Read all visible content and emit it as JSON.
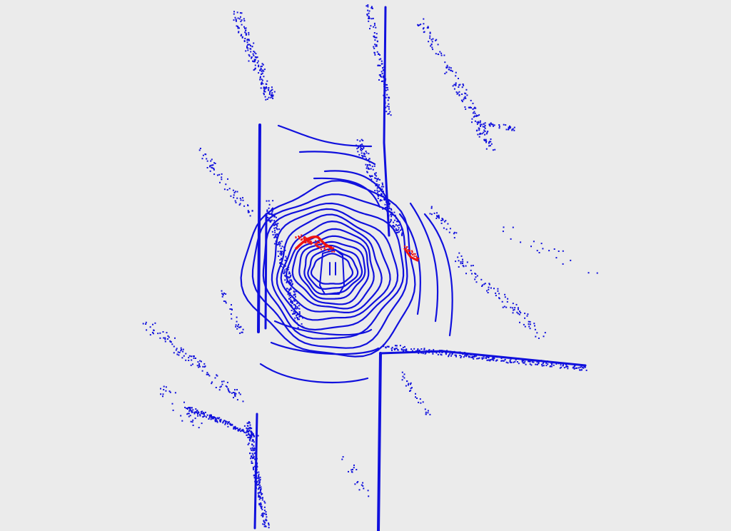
{
  "view": {
    "kind": "lidar-bev-point-cloud",
    "background_color": "#ebebeb",
    "point_color": "#1010dd",
    "highlight_color": "#ee1111"
  }
}
